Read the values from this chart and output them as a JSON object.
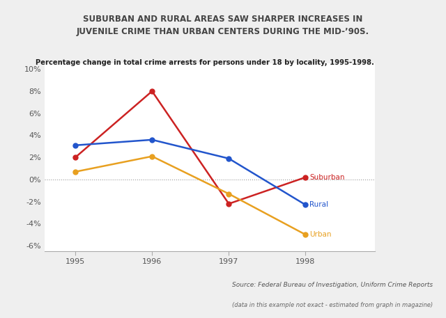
{
  "title": "SUBURBAN AND RURAL AREAS SAW SHARPER INCREASES IN\nJUVENILE CRIME THAN URBAN CENTERS DURING THE MID-’90S.",
  "subtitle": "Percentage change in total crime arrests for persons under 18 by locality, 1995-1998.",
  "years": [
    1995,
    1996,
    1997,
    1998
  ],
  "series_order": [
    "Suburban",
    "Rural",
    "Urban"
  ],
  "series": {
    "Suburban": {
      "values": [
        2.0,
        8.0,
        -2.2,
        0.2
      ],
      "color": "#cc2222",
      "marker": "o"
    },
    "Rural": {
      "values": [
        3.1,
        3.6,
        1.9,
        -2.3
      ],
      "color": "#2255cc",
      "marker": "o"
    },
    "Urban": {
      "values": [
        0.7,
        2.1,
        -1.3,
        -5.0
      ],
      "color": "#e8a020",
      "marker": "o"
    }
  },
  "ylim": [
    -6.5,
    10.5
  ],
  "yticks": [
    -6,
    -4,
    -2,
    0,
    2,
    4,
    6,
    8,
    10
  ],
  "source_line1": "Source: Federal Bureau of Investigation, Uniform Crime Reports",
  "source_line2": "(data in this example not exact - estimated from graph in magazine)",
  "background_color": "#efefef",
  "plot_bg_color": "#ffffff",
  "title_bg_color": "#e0e0e0",
  "zero_line_color": "#999999"
}
